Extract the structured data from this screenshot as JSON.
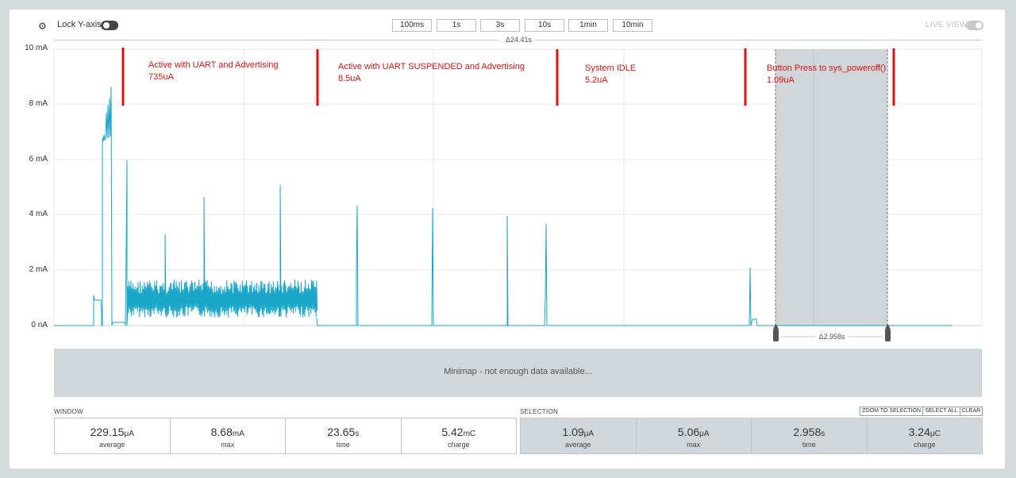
{
  "toolbar": {
    "lock_label": "Lock Y-axis",
    "gear_icon": "gear-icon",
    "time_buttons": [
      "100ms",
      "1s",
      "3s",
      "10s",
      "1min",
      "10min"
    ],
    "live_label": "LIVE VIEW"
  },
  "chart": {
    "window_delta": "Δ24.41s",
    "selection_delta": "Δ2.958s",
    "y_labels": [
      "10 mA",
      "8 mA",
      "6 mA",
      "4 mA",
      "2 mA",
      "0 nA"
    ],
    "annotations": [
      {
        "line1": "Active with UART and Advertising",
        "line2": "735uA"
      },
      {
        "line1": "Active with UART SUSPENDED and Advertising",
        "line2": "8.5uA"
      },
      {
        "line1": "System IDLE",
        "line2": "5.2uA"
      },
      {
        "line1": "Button Press to sys_poweroff()",
        "line2": "1.09uA"
      }
    ],
    "marker_color": "#e01010",
    "trace_color": "#1aa6c8"
  },
  "chart_data": {
    "type": "line",
    "ylabel": "",
    "xlabel": "",
    "ylim": [
      0,
      10
    ],
    "grid": true
  },
  "minimap": {
    "text": "Minimap - not enough data available..."
  },
  "window": {
    "label": "WINDOW",
    "stats": [
      {
        "value": "229.15",
        "unit": "μA",
        "caption": "average"
      },
      {
        "value": "8.68",
        "unit": "mA",
        "caption": "max"
      },
      {
        "value": "23.65",
        "unit": "s",
        "caption": "time"
      },
      {
        "value": "5.42",
        "unit": "mC",
        "caption": "charge"
      }
    ]
  },
  "selection": {
    "label": "SELECTION",
    "buttons": [
      "ZOOM TO SELECTION",
      "SELECT ALL",
      "CLEAR"
    ],
    "stats": [
      {
        "value": "1.09",
        "unit": "μA",
        "caption": "average"
      },
      {
        "value": "5.06",
        "unit": "μA",
        "caption": "max"
      },
      {
        "value": "2.958",
        "unit": "s",
        "caption": "time"
      },
      {
        "value": "3.24",
        "unit": "μC",
        "caption": "charge"
      }
    ]
  }
}
